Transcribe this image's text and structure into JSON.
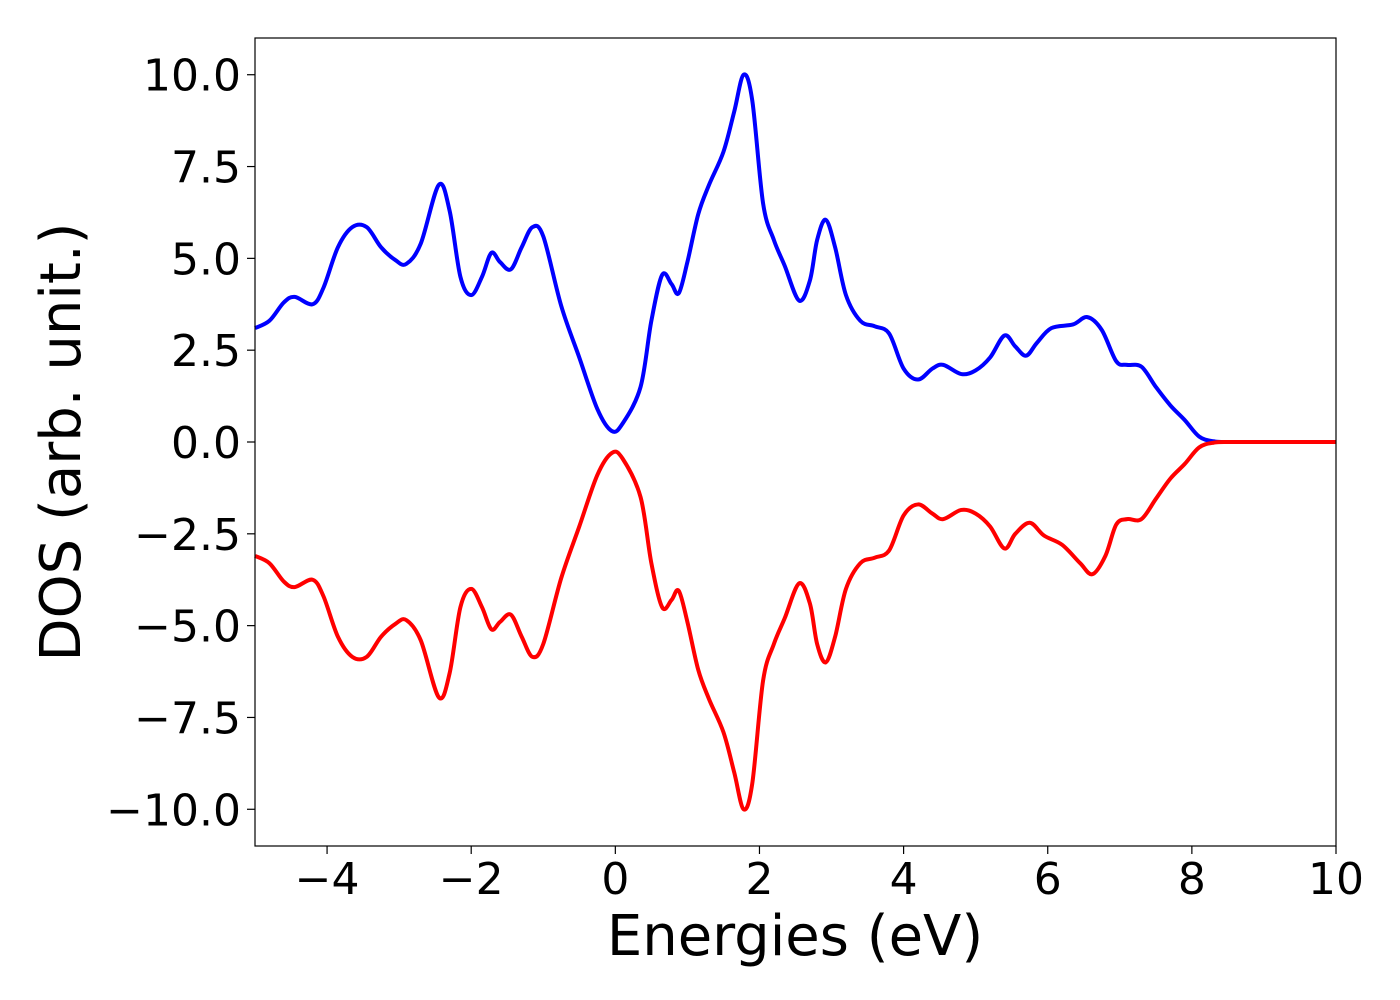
{
  "chart_data": {
    "type": "line",
    "title": "",
    "xlabel": "Energies (eV)",
    "ylabel": "DOS (arb. unit.)",
    "xlim": [
      -5,
      10
    ],
    "ylim": [
      -11,
      11
    ],
    "grid": false,
    "x_ticks": [
      -4,
      -2,
      0,
      2,
      4,
      6,
      8,
      10
    ],
    "x_tick_labels": [
      "−4",
      "−2",
      "0",
      "2",
      "4",
      "6",
      "8",
      "10"
    ],
    "y_ticks": [
      10,
      7.5,
      5,
      2.5,
      0,
      -2.5,
      -5,
      -7.5,
      -10
    ],
    "y_tick_labels": [
      "10.0",
      "7.5",
      "5.0",
      "2.5",
      "0.0",
      "−2.5",
      "−5.0",
      "−7.5",
      "−10.0"
    ],
    "series": [
      {
        "color": "#0000ff",
        "points": [
          [
            -5.0,
            3.1
          ],
          [
            -4.8,
            3.3
          ],
          [
            -4.6,
            3.8
          ],
          [
            -4.45,
            3.95
          ],
          [
            -4.2,
            3.75
          ],
          [
            -4.05,
            4.2
          ],
          [
            -3.85,
            5.3
          ],
          [
            -3.65,
            5.85
          ],
          [
            -3.45,
            5.85
          ],
          [
            -3.25,
            5.3
          ],
          [
            -3.05,
            4.95
          ],
          [
            -2.9,
            4.85
          ],
          [
            -2.7,
            5.4
          ],
          [
            -2.45,
            7.0
          ],
          [
            -2.3,
            6.3
          ],
          [
            -2.15,
            4.5
          ],
          [
            -2.0,
            4.0
          ],
          [
            -1.85,
            4.5
          ],
          [
            -1.72,
            5.15
          ],
          [
            -1.6,
            4.9
          ],
          [
            -1.45,
            4.7
          ],
          [
            -1.3,
            5.3
          ],
          [
            -1.15,
            5.85
          ],
          [
            -1.0,
            5.6
          ],
          [
            -0.75,
            3.7
          ],
          [
            -0.5,
            2.3
          ],
          [
            -0.25,
            0.9
          ],
          [
            -0.05,
            0.3
          ],
          [
            0.1,
            0.5
          ],
          [
            0.35,
            1.5
          ],
          [
            0.5,
            3.3
          ],
          [
            0.65,
            4.55
          ],
          [
            0.78,
            4.3
          ],
          [
            0.88,
            4.05
          ],
          [
            1.0,
            4.9
          ],
          [
            1.15,
            6.2
          ],
          [
            1.3,
            7.0
          ],
          [
            1.5,
            7.9
          ],
          [
            1.65,
            9.0
          ],
          [
            1.78,
            10.0
          ],
          [
            1.9,
            9.3
          ],
          [
            2.05,
            6.5
          ],
          [
            2.2,
            5.5
          ],
          [
            2.35,
            4.8
          ],
          [
            2.55,
            3.85
          ],
          [
            2.7,
            4.4
          ],
          [
            2.8,
            5.5
          ],
          [
            2.92,
            6.05
          ],
          [
            3.05,
            5.3
          ],
          [
            3.2,
            4.0
          ],
          [
            3.4,
            3.3
          ],
          [
            3.6,
            3.15
          ],
          [
            3.8,
            2.95
          ],
          [
            4.0,
            2.0
          ],
          [
            4.2,
            1.7
          ],
          [
            4.4,
            2.0
          ],
          [
            4.55,
            2.1
          ],
          [
            4.8,
            1.85
          ],
          [
            5.0,
            1.95
          ],
          [
            5.2,
            2.3
          ],
          [
            5.4,
            2.9
          ],
          [
            5.55,
            2.6
          ],
          [
            5.7,
            2.35
          ],
          [
            5.85,
            2.7
          ],
          [
            6.05,
            3.1
          ],
          [
            6.35,
            3.2
          ],
          [
            6.55,
            3.4
          ],
          [
            6.75,
            3.05
          ],
          [
            6.95,
            2.2
          ],
          [
            7.1,
            2.1
          ],
          [
            7.3,
            2.05
          ],
          [
            7.5,
            1.5
          ],
          [
            7.7,
            1.0
          ],
          [
            7.9,
            0.6
          ],
          [
            8.1,
            0.15
          ],
          [
            8.3,
            0.02
          ],
          [
            8.6,
            0.0
          ],
          [
            10.0,
            0.0
          ]
        ]
      },
      {
        "color": "#ff0000",
        "points": [
          [
            -5.0,
            -3.1
          ],
          [
            -4.8,
            -3.3
          ],
          [
            -4.6,
            -3.8
          ],
          [
            -4.45,
            -3.95
          ],
          [
            -4.2,
            -3.75
          ],
          [
            -4.05,
            -4.2
          ],
          [
            -3.85,
            -5.3
          ],
          [
            -3.65,
            -5.85
          ],
          [
            -3.45,
            -5.85
          ],
          [
            -3.25,
            -5.3
          ],
          [
            -3.05,
            -4.95
          ],
          [
            -2.9,
            -4.85
          ],
          [
            -2.7,
            -5.4
          ],
          [
            -2.45,
            -6.95
          ],
          [
            -2.3,
            -6.3
          ],
          [
            -2.15,
            -4.5
          ],
          [
            -2.0,
            -4.0
          ],
          [
            -1.85,
            -4.5
          ],
          [
            -1.72,
            -5.1
          ],
          [
            -1.6,
            -4.9
          ],
          [
            -1.45,
            -4.7
          ],
          [
            -1.3,
            -5.3
          ],
          [
            -1.15,
            -5.85
          ],
          [
            -1.0,
            -5.5
          ],
          [
            -0.75,
            -3.7
          ],
          [
            -0.5,
            -2.3
          ],
          [
            -0.25,
            -0.9
          ],
          [
            -0.05,
            -0.3
          ],
          [
            0.1,
            -0.45
          ],
          [
            0.35,
            -1.5
          ],
          [
            0.5,
            -3.3
          ],
          [
            0.65,
            -4.5
          ],
          [
            0.78,
            -4.3
          ],
          [
            0.88,
            -4.05
          ],
          [
            1.0,
            -4.9
          ],
          [
            1.15,
            -6.2
          ],
          [
            1.3,
            -7.0
          ],
          [
            1.5,
            -7.9
          ],
          [
            1.65,
            -9.0
          ],
          [
            1.78,
            -10.0
          ],
          [
            1.9,
            -9.3
          ],
          [
            2.05,
            -6.5
          ],
          [
            2.2,
            -5.5
          ],
          [
            2.35,
            -4.8
          ],
          [
            2.55,
            -3.85
          ],
          [
            2.7,
            -4.4
          ],
          [
            2.8,
            -5.5
          ],
          [
            2.92,
            -6.0
          ],
          [
            3.05,
            -5.3
          ],
          [
            3.2,
            -4.0
          ],
          [
            3.4,
            -3.3
          ],
          [
            3.6,
            -3.15
          ],
          [
            3.8,
            -2.95
          ],
          [
            4.0,
            -2.0
          ],
          [
            4.2,
            -1.7
          ],
          [
            4.4,
            -1.95
          ],
          [
            4.55,
            -2.1
          ],
          [
            4.8,
            -1.85
          ],
          [
            5.0,
            -1.95
          ],
          [
            5.2,
            -2.3
          ],
          [
            5.4,
            -2.9
          ],
          [
            5.55,
            -2.5
          ],
          [
            5.75,
            -2.2
          ],
          [
            5.95,
            -2.55
          ],
          [
            6.2,
            -2.8
          ],
          [
            6.45,
            -3.3
          ],
          [
            6.62,
            -3.6
          ],
          [
            6.8,
            -3.1
          ],
          [
            6.95,
            -2.25
          ],
          [
            7.1,
            -2.1
          ],
          [
            7.3,
            -2.1
          ],
          [
            7.5,
            -1.55
          ],
          [
            7.7,
            -1.0
          ],
          [
            7.9,
            -0.6
          ],
          [
            8.1,
            -0.15
          ],
          [
            8.3,
            -0.02
          ],
          [
            8.6,
            0.0
          ],
          [
            10.0,
            0.0
          ]
        ]
      }
    ]
  }
}
